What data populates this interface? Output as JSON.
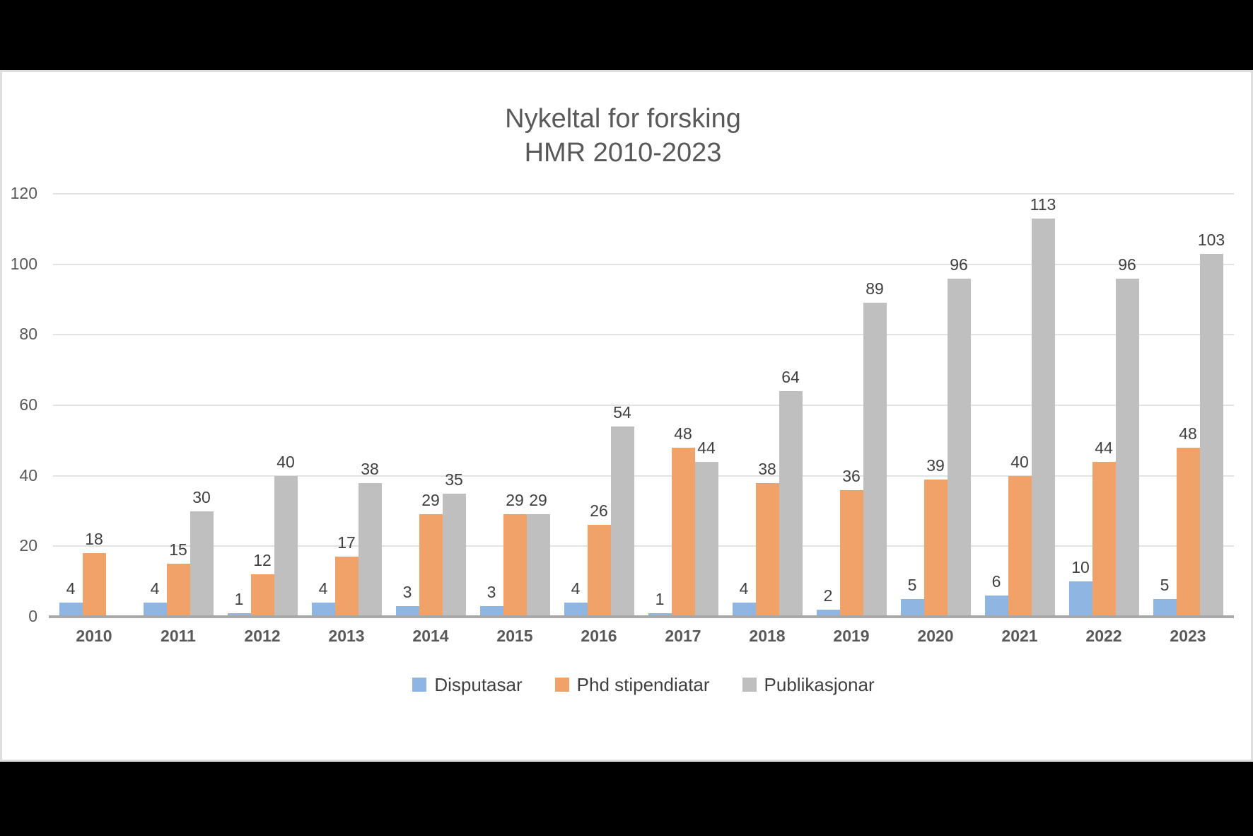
{
  "chart": {
    "title_line1": "Nykeltal for forsking",
    "title_line2": "HMR 2010-2023"
  },
  "chart_data": {
    "type": "bar",
    "title": "Nykeltal for forsking HMR 2010-2023",
    "categories": [
      "2010",
      "2011",
      "2012",
      "2013",
      "2014",
      "2015",
      "2016",
      "2017",
      "2018",
      "2019",
      "2020",
      "2021",
      "2022",
      "2023"
    ],
    "series": [
      {
        "name": "Disputasar",
        "color": "#8fb6e2",
        "values": [
          4,
          4,
          1,
          4,
          3,
          3,
          4,
          1,
          4,
          2,
          5,
          6,
          10,
          5
        ]
      },
      {
        "name": "Phd stipendiatar",
        "color": "#f0a268",
        "values": [
          18,
          15,
          12,
          17,
          29,
          29,
          26,
          48,
          38,
          36,
          39,
          40,
          44,
          48
        ]
      },
      {
        "name": "Publikasjonar",
        "color": "#bfbfbf",
        "values": [
          null,
          30,
          40,
          38,
          35,
          29,
          54,
          44,
          64,
          89,
          96,
          113,
          96,
          103
        ]
      }
    ],
    "y_axis": {
      "min": 0,
      "max": 120,
      "step": 20,
      "ticks": [
        0,
        20,
        40,
        60,
        80,
        100,
        120
      ]
    },
    "grid": true,
    "data_labels": true,
    "legend_position": "bottom",
    "xlabel": "",
    "ylabel": ""
  },
  "colors": {
    "background": "#000000",
    "panel": "#ffffff",
    "panel_border": "#dedede",
    "gridline": "#e3e3e3",
    "axis_line": "#a8a8a8",
    "title_text": "#595959",
    "tick_text": "#595959",
    "value_label_text": "#404040",
    "legend_text": "#3f3f3f"
  }
}
